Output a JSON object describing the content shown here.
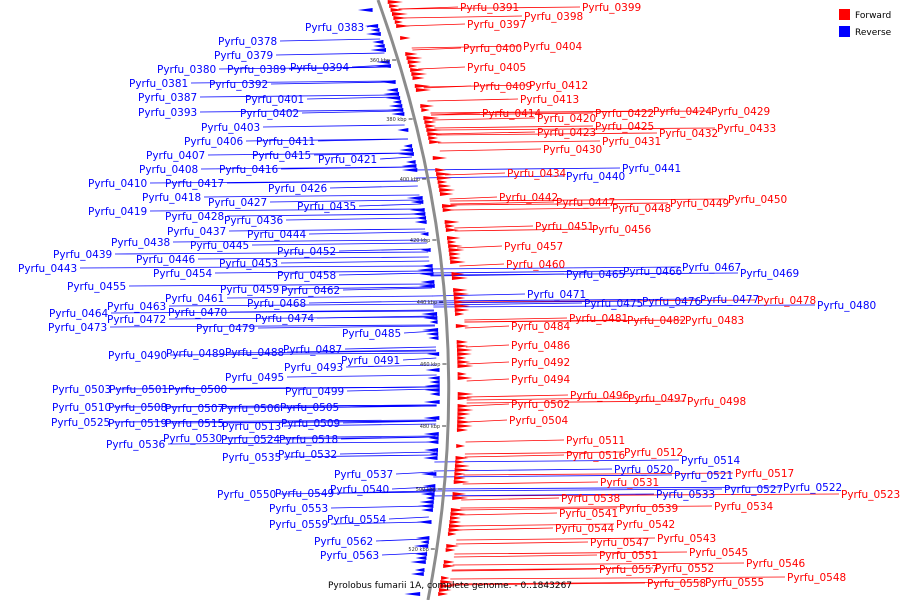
{
  "caption": "Pyrolobus fumarii 1A, complete genome. - 0..1843267",
  "legend": [
    {
      "label": "Forward",
      "color": "#ff0000"
    },
    {
      "label": "Reverse",
      "color": "#0000ff"
    }
  ],
  "colors": {
    "forward": "#ff0000",
    "reverse": "#0000ff",
    "backbone": "#888888"
  },
  "ticks": [
    "360 kbp",
    "380 kbp",
    "400 kbp",
    "420 kbp",
    "440 kbp",
    "460 kbp",
    "480 kbp",
    "500 kbp",
    "520 kbp"
  ],
  "forward_labels": [
    "Pyrfu_0391",
    "Pyrfu_0397",
    "Pyrfu_0398",
    "Pyrfu_0399",
    "Pyrfu_0400",
    "Pyrfu_0404",
    "Pyrfu_0405",
    "Pyrfu_0409",
    "Pyrfu_0412",
    "Pyrfu_0413",
    "Pyrfu_0414",
    "Pyrfu_0420",
    "Pyrfu_0422",
    "Pyrfu_0424",
    "Pyrfu_0429",
    "Pyrfu_0423",
    "Pyrfu_0425",
    "Pyrfu_0432",
    "Pyrfu_0433",
    "Pyrfu_0430",
    "Pyrfu_0431",
    "Pyrfu_0434",
    "Pyrfu_0442",
    "Pyrfu_0447",
    "Pyrfu_0448",
    "Pyrfu_0449",
    "Pyrfu_0450",
    "Pyrfu_0451",
    "Pyrfu_0456",
    "Pyrfu_0457",
    "Pyrfu_0460",
    "Pyrfu_0478",
    "Pyrfu_0481",
    "Pyrfu_0482",
    "Pyrfu_0483",
    "Pyrfu_0484",
    "Pyrfu_0486",
    "Pyrfu_0492",
    "Pyrfu_0494",
    "Pyrfu_0496",
    "Pyrfu_0497",
    "Pyrfu_0498",
    "Pyrfu_0502",
    "Pyrfu_0504",
    "Pyrfu_0511",
    "Pyrfu_0512",
    "Pyrfu_0516",
    "Pyrfu_0517",
    "Pyrfu_0523",
    "Pyrfu_0531",
    "Pyrfu_0534",
    "Pyrfu_0538",
    "Pyrfu_0539",
    "Pyrfu_0541",
    "Pyrfu_0542",
    "Pyrfu_0543",
    "Pyrfu_0544",
    "Pyrfu_0545",
    "Pyrfu_0546",
    "Pyrfu_0547",
    "Pyrfu_0548",
    "Pyrfu_0551",
    "Pyrfu_0552",
    "Pyrfu_0555",
    "Pyrfu_0557",
    "Pyrfu_0558"
  ],
  "reverse_labels": [
    "Pyrfu_0383",
    "Pyrfu_0378",
    "Pyrfu_0379",
    "Pyrfu_0380",
    "Pyrfu_0389",
    "Pyrfu_0394",
    "Pyrfu_0381",
    "Pyrfu_0392",
    "Pyrfu_0387",
    "Pyrfu_0401",
    "Pyrfu_0393",
    "Pyrfu_0402",
    "Pyrfu_0403",
    "Pyrfu_0406",
    "Pyrfu_0411",
    "Pyrfu_0407",
    "Pyrfu_0415",
    "Pyrfu_0421",
    "Pyrfu_0408",
    "Pyrfu_0416",
    "Pyrfu_0410",
    "Pyrfu_0417",
    "Pyrfu_0426",
    "Pyrfu_0418",
    "Pyrfu_0427",
    "Pyrfu_0435",
    "Pyrfu_0419",
    "Pyrfu_0428",
    "Pyrfu_0436",
    "Pyrfu_0437",
    "Pyrfu_0444",
    "Pyrfu_0438",
    "Pyrfu_0445",
    "Pyrfu_0452",
    "Pyrfu_0439",
    "Pyrfu_0446",
    "Pyrfu_0453",
    "Pyrfu_0443",
    "Pyrfu_0454",
    "Pyrfu_0458",
    "Pyrfu_0455",
    "Pyrfu_0459",
    "Pyrfu_0462",
    "Pyrfu_0461",
    "Pyrfu_0463",
    "Pyrfu_0468",
    "Pyrfu_0464",
    "Pyrfu_0470",
    "Pyrfu_0474",
    "Pyrfu_0472",
    "Pyrfu_0473",
    "Pyrfu_0479",
    "Pyrfu_0485",
    "Pyrfu_0487",
    "Pyrfu_0490",
    "Pyrfu_0489",
    "Pyrfu_0488",
    "Pyrfu_0491",
    "Pyrfu_0493",
    "Pyrfu_0495",
    "Pyrfu_0499",
    "Pyrfu_0503",
    "Pyrfu_0501",
    "Pyrfu_0500",
    "Pyrfu_0510",
    "Pyrfu_0508",
    "Pyrfu_0507",
    "Pyrfu_0506",
    "Pyrfu_0505",
    "Pyrfu_0525",
    "Pyrfu_0519",
    "Pyrfu_0515",
    "Pyrfu_0513",
    "Pyrfu_0509",
    "Pyrfu_0530",
    "Pyrfu_0524",
    "Pyrfu_0518",
    "Pyrfu_0536",
    "Pyrfu_0535",
    "Pyrfu_0532",
    "Pyrfu_0537",
    "Pyrfu_0540",
    "Pyrfu_0550",
    "Pyrfu_0549",
    "Pyrfu_0553",
    "Pyrfu_0554",
    "Pyrfu_0559",
    "Pyrfu_0562",
    "Pyrfu_0563",
    "Pyrfu_0465",
    "Pyrfu_0466",
    "Pyrfu_0467",
    "Pyrfu_0469",
    "Pyrfu_0440",
    "Pyrfu_0441",
    "Pyrfu_0471",
    "Pyrfu_0475",
    "Pyrfu_0476",
    "Pyrfu_0477",
    "Pyrfu_0480",
    "Pyrfu_0514",
    "Pyrfu_0520",
    "Pyrfu_0521",
    "Pyrfu_0527",
    "Pyrfu_0522",
    "Pyrfu_0533"
  ]
}
